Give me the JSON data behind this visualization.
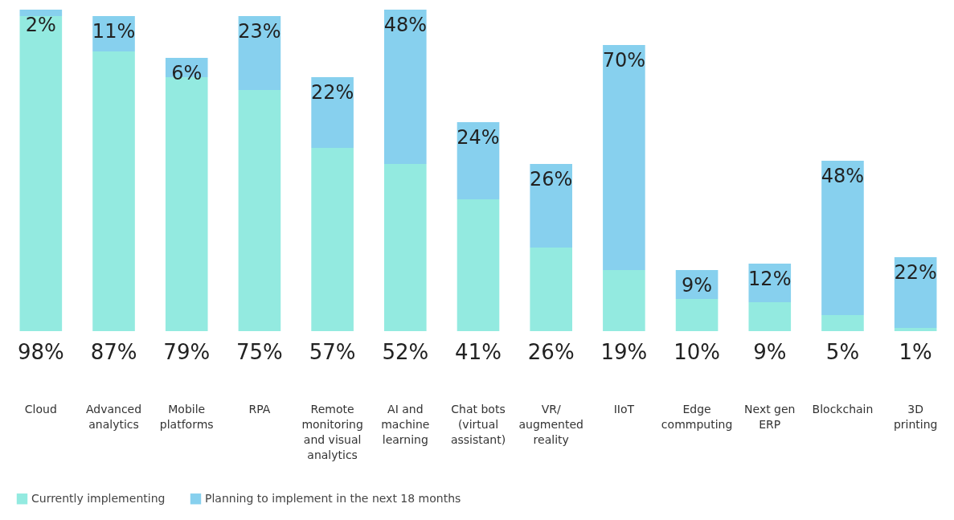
{
  "chart_data": {
    "type": "bar",
    "stacked": true,
    "legend": "bottom left",
    "ylim": [
      0,
      100
    ],
    "categories": [
      "Cloud",
      "Advanced analytics",
      "Mobile platforms",
      "RPA",
      "Remote monitoring and visual analytics",
      "AI and machine learning",
      "Chat bots (virtual assistant)",
      "VR/ augmented reality",
      "IIoT",
      "Edge commputing",
      "Next gen ERP",
      "Blockchain",
      "3D printing"
    ],
    "series": [
      {
        "name": "Currently implementing",
        "color": "#93eae0",
        "values": [
          98,
          87,
          79,
          75,
          57,
          52,
          41,
          26,
          19,
          10,
          9,
          5,
          1
        ],
        "value_labels": [
          "98%",
          "87%",
          "79%",
          "75%",
          "57%",
          "52%",
          "41%",
          "26%",
          "19%",
          "10%",
          "9%",
          "5%",
          "1%"
        ]
      },
      {
        "name": "Planning to implement in the next 18 months",
        "color": "#87d0ee",
        "values": [
          2,
          11,
          6,
          23,
          22,
          48,
          24,
          26,
          70,
          9,
          12,
          48,
          22
        ],
        "value_labels": [
          "2%",
          "11%",
          "6%",
          "23%",
          "22%",
          "48%",
          "24%",
          "26%",
          "70%",
          "9%",
          "12%",
          "48%",
          "22%"
        ]
      }
    ]
  }
}
